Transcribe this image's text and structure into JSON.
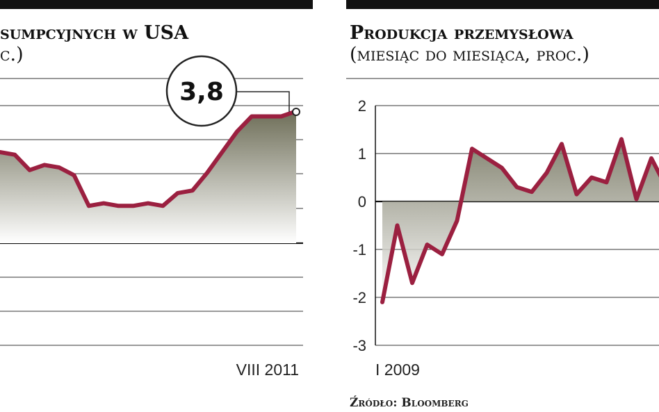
{
  "colors": {
    "line": "#9b2040",
    "area_top": "#6e6e58",
    "area_bottom": "#ffffff",
    "grid": "#333333",
    "bar": "#111111"
  },
  "left_chart": {
    "title": "sumpcyjnych w USA",
    "subtitle": "c.)",
    "end_label": "VIII 2011",
    "callout": "3,8"
  },
  "right_chart": {
    "title": "Produkcja przemysłowa",
    "subtitle": "(miesiąc do miesiąca, proc.)",
    "start_label": "I 2009",
    "y_ticks": [
      "2",
      "1",
      "0",
      "-1",
      "-2",
      "-3"
    ],
    "source": "Źródło: Bloomberg"
  },
  "chart_data": [
    {
      "type": "area",
      "title": "sumpcyjnych w USA",
      "subtitle": "c.)",
      "x_end_label": "VIII 2011",
      "annotation": "3,8",
      "series": [
        {
          "values": [
            2.2,
            2.1,
            1.5,
            1.7,
            1.6,
            1.3,
            0.1,
            0.2,
            0.1,
            0.1,
            0.2,
            0.1,
            0.6,
            0.7,
            1.4,
            2.2,
            3.0,
            3.6,
            3.6,
            3.6,
            3.8
          ]
        }
      ]
    },
    {
      "type": "line",
      "title": "Produkcja przemysłowa",
      "subtitle": "(miesiąc do miesiąca, proc.)",
      "x_start_label": "I 2009",
      "ylim": [
        -3,
        2
      ],
      "y_ticks": [
        2,
        1,
        0,
        -1,
        -2,
        -3
      ],
      "series": [
        {
          "values": [
            -2.1,
            -0.5,
            -1.7,
            -0.9,
            -1.1,
            -0.4,
            1.1,
            0.9,
            0.7,
            0.3,
            0.2,
            0.6,
            1.2,
            0.15,
            0.5,
            0.4,
            1.3,
            0.05,
            0.9,
            0.3
          ]
        }
      ]
    }
  ]
}
